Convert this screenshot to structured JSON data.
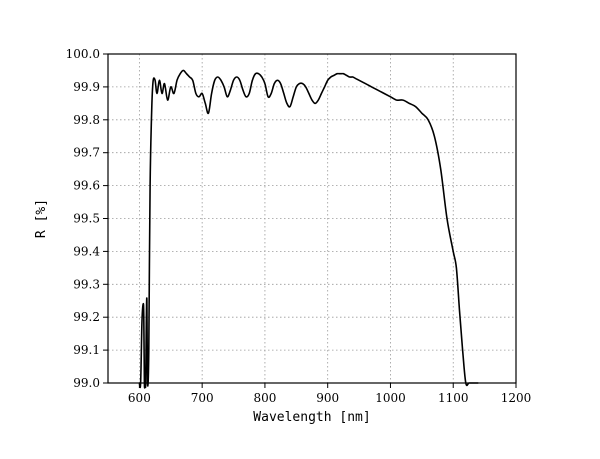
{
  "chart_data": {
    "type": "line",
    "title": "",
    "xlabel": "Wavelength [nm]",
    "ylabel": "R [%]",
    "xlim": [
      550,
      1200
    ],
    "ylim": [
      99.0,
      100.0
    ],
    "xticks": [
      600,
      700,
      800,
      900,
      1000,
      1100,
      1200
    ],
    "yticks": [
      99.0,
      99.1,
      99.2,
      99.3,
      99.4,
      99.5,
      99.6,
      99.7,
      99.8,
      99.9,
      100.0
    ],
    "xtick_labels": [
      "600",
      "700",
      "800",
      "900",
      "1000",
      "1100",
      "1200"
    ],
    "ytick_labels": [
      "99.0",
      "99.1",
      "99.2",
      "99.3",
      "99.4",
      "99.5",
      "99.6",
      "99.7",
      "99.8",
      "99.9",
      "100.0"
    ],
    "grid": true,
    "grid_style": "dotted",
    "legend": "none",
    "line_color": "#000000",
    "series": [
      {
        "x": [
          600,
          602,
          604,
          606,
          607,
          608,
          609,
          610,
          611,
          612,
          613,
          615,
          617,
          620,
          622,
          625,
          628,
          632,
          636,
          640,
          645,
          650,
          655,
          660,
          665,
          670,
          675,
          680,
          685,
          690,
          695,
          700,
          705,
          710,
          715,
          720,
          725,
          730,
          735,
          740,
          745,
          750,
          755,
          760,
          765,
          770,
          775,
          780,
          785,
          790,
          795,
          800,
          805,
          810,
          815,
          820,
          825,
          830,
          835,
          840,
          845,
          850,
          855,
          860,
          865,
          870,
          875,
          880,
          885,
          890,
          895,
          900,
          905,
          910,
          915,
          920,
          925,
          930,
          935,
          940,
          945,
          950,
          960,
          970,
          980,
          990,
          1000,
          1010,
          1020,
          1030,
          1040,
          1050,
          1060,
          1070,
          1080,
          1090,
          1100,
          1105,
          1110,
          1115,
          1120,
          1125,
          1130,
          1135,
          1138,
          1140
        ],
        "y": [
          99.0,
          99.0,
          99.18,
          99.24,
          99.2,
          99.0,
          99.0,
          99.0,
          99.18,
          99.25,
          99.0,
          99.1,
          99.6,
          99.85,
          99.92,
          99.92,
          99.88,
          99.92,
          99.88,
          99.91,
          99.86,
          99.9,
          99.88,
          99.92,
          99.94,
          99.95,
          99.94,
          99.93,
          99.92,
          99.88,
          99.87,
          99.88,
          99.85,
          99.82,
          99.88,
          99.92,
          99.93,
          99.92,
          99.9,
          99.87,
          99.89,
          99.92,
          99.93,
          99.92,
          99.89,
          99.87,
          99.88,
          99.92,
          99.94,
          99.94,
          99.93,
          99.91,
          99.87,
          99.88,
          99.91,
          99.92,
          99.91,
          99.88,
          99.85,
          99.84,
          99.87,
          99.9,
          99.91,
          99.91,
          99.9,
          99.88,
          99.86,
          99.85,
          99.86,
          99.88,
          99.9,
          99.92,
          99.93,
          99.935,
          99.94,
          99.94,
          99.94,
          99.935,
          99.93,
          99.93,
          99.925,
          99.92,
          99.91,
          99.9,
          99.89,
          99.88,
          99.87,
          99.86,
          99.86,
          99.85,
          99.84,
          99.82,
          99.8,
          99.75,
          99.65,
          99.5,
          99.4,
          99.35,
          99.22,
          99.1,
          99.0,
          99.0,
          99.0,
          99.0,
          99.0,
          99.0
        ],
        "color": "#000000"
      }
    ]
  }
}
